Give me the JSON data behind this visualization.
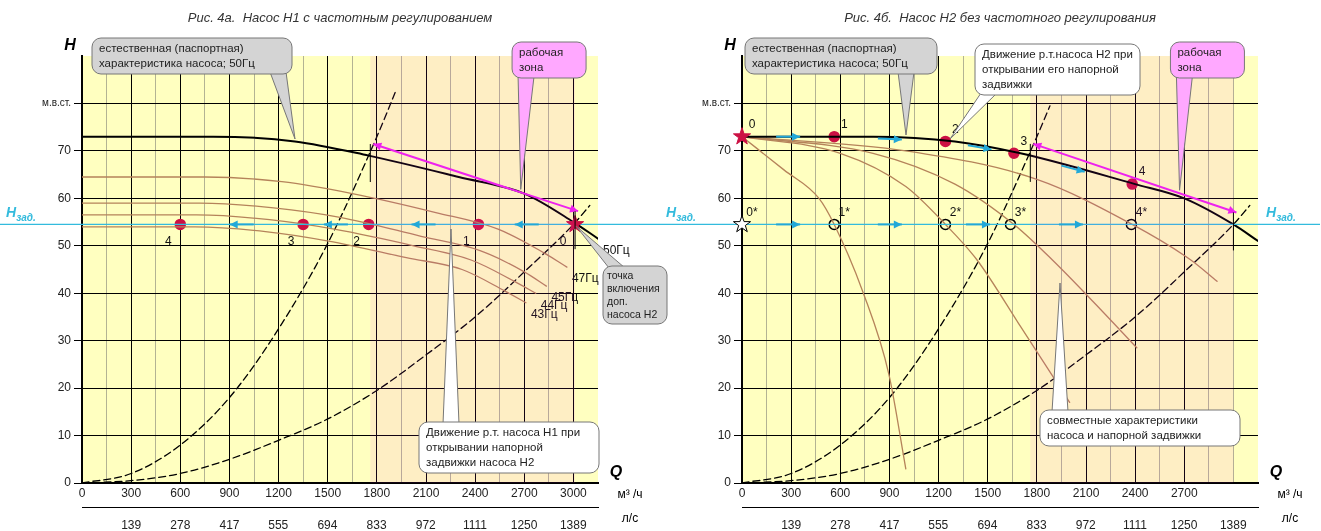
{
  "chart_data": [
    {
      "type": "line",
      "title": "Рис. 4а.  Насос Н1 с частотным регулированием",
      "xlabel": "м³ /ч",
      "x2label": "л/с",
      "ylabel": "H",
      "xlim": [
        0,
        3150
      ],
      "ylim": [
        0,
        90
      ],
      "x2lim": [
        0,
        1459
      ],
      "xticks": [
        0,
        {
          "value": 150,
          "label": null
        },
        300,
        {
          "value": 450,
          "label": null
        },
        600,
        {
          "value": 750,
          "label": null
        },
        900,
        {
          "value": 1050,
          "label": null
        },
        1200,
        {
          "value": 1350,
          "label": null
        },
        1500,
        {
          "value": 1650,
          "label": null
        },
        1800,
        {
          "value": 1950,
          "label": null
        },
        2100,
        {
          "value": 2250,
          "label": null
        },
        2400,
        {
          "value": 2550,
          "label": null
        },
        2700,
        {
          "value": 2850,
          "label": null
        },
        3000
      ],
      "x2ticks": [
        139,
        278,
        417,
        555,
        694,
        833,
        972,
        1111,
        1250,
        1389
      ],
      "yticks": [
        0,
        10,
        20,
        30,
        40,
        50,
        60,
        70,
        {
          "value": 80,
          "label": "м.в.ст."
        }
      ],
      "grid": true,
      "legend": false,
      "series": [
        {
          "name": "50Гц",
          "color": "#000000",
          "x": [
            0,
            800,
            1300,
            1750,
            2300,
            2700,
            3000,
            3150
          ],
          "values": [
            73,
            73,
            72,
            69,
            64.5,
            61,
            55,
            51.5
          ]
        },
        {
          "name": "47Гц",
          "color": "#b5835a",
          "x": [
            0,
            750,
            1220,
            1650,
            2160,
            2540,
            2820,
            2960
          ],
          "values": [
            64.5,
            64.5,
            63.5,
            61,
            57,
            53.5,
            48.5,
            45.5
          ]
        },
        {
          "name": "45Гц",
          "color": "#b5835a",
          "x": [
            0,
            720,
            1170,
            1575,
            2070,
            2430,
            2700,
            2835
          ],
          "values": [
            59,
            59,
            58,
            56,
            52,
            49,
            44.5,
            41.5
          ]
        },
        {
          "name": "44Гц",
          "color": "#b5835a",
          "x": [
            0,
            700,
            1145,
            1540,
            2025,
            2375,
            2640,
            2770
          ],
          "values": [
            56.5,
            56.5,
            55.5,
            53.5,
            50,
            47,
            42.5,
            40
          ]
        },
        {
          "name": "43Гц",
          "color": "#b5835a",
          "x": [
            0,
            690,
            1120,
            1505,
            1980,
            2320,
            2580,
            2710
          ],
          "values": [
            54,
            54,
            53,
            51,
            47.5,
            45,
            40.5,
            38
          ]
        },
        {
          "line_style": "dashed",
          "color": "#000000",
          "x": [
            0,
            300,
            600,
            900,
            1200,
            1500,
            1800,
            1920
          ],
          "values": [
            0,
            2,
            8,
            18,
            32.5,
            50.5,
            73,
            83
          ]
        },
        {
          "line_style": "dashed",
          "color": "#000000",
          "x": [
            0,
            300,
            600,
            900,
            1200,
            1500,
            1800,
            2100,
            2400,
            2700,
            3000,
            3100
          ],
          "values": [
            0,
            0.5,
            2,
            5,
            9,
            13.5,
            19.5,
            27,
            35,
            44.5,
            54.5,
            58.5
          ]
        },
        {
          "type": "scatter",
          "marker": "star",
          "color": "#cc1144",
          "x": [
            3010
          ],
          "values": [
            54.5
          ]
        },
        {
          "type": "scatter",
          "marker": "circle",
          "color": "#cc1144",
          "x": [
            2420,
            1750,
            1350,
            600
          ],
          "values": [
            54.5,
            54.5,
            54.5,
            54.5
          ]
        }
      ],
      "ref_lines": [
        {
          "axis": "y",
          "value": 54.5,
          "label": "H$_{зад.}$",
          "color": "#33bbdd"
        }
      ],
      "bands": [
        {
          "axis": "x",
          "from": 1760,
          "to": 3010,
          "label": "рабочая зона",
          "color": "#ee22ee"
        }
      ],
      "annotations": [
        "Q",
        "естественная (паспортная) характеристика насоса; 50Гц",
        "точка включения доп. насоса Н2",
        "Движение р.т. насоса Н1 при открывании напорной задвижки насоса Н2",
        {
          "text": "0",
          "x": 3010,
          "y": 54.5
        },
        {
          "text": "1",
          "x": 2420,
          "y": 54.5
        },
        {
          "text": "2",
          "x": 1750,
          "y": 54.5
        },
        {
          "text": "3",
          "x": 1350,
          "y": 54.5
        },
        {
          "text": "4",
          "x": 600,
          "y": 54.5
        }
      ]
    },
    {
      "type": "line",
      "title": "Рис. 4б.  Насос Н2 без частотного регулирования",
      "xlabel": "м³ /ч",
      "x2label": "л/с",
      "ylabel": "H",
      "xlim": [
        0,
        3150
      ],
      "ylim": [
        0,
        90
      ],
      "x2lim": [
        0,
        1459
      ],
      "xticks": [
        0,
        {
          "value": 150,
          "label": null
        },
        300,
        {
          "value": 450,
          "label": null
        },
        600,
        {
          "value": 750,
          "label": null
        },
        900,
        {
          "value": 1050,
          "label": null
        },
        1200,
        {
          "value": 1350,
          "label": null
        },
        1500,
        {
          "value": 1650,
          "label": null
        },
        1800,
        {
          "value": 1950,
          "label": null
        },
        2100,
        {
          "value": 2250,
          "label": null
        },
        2400,
        {
          "value": 2550,
          "label": null
        },
        2700,
        {
          "value": 2850,
          "label": null
        },
        {
          "value": 3000,
          "label": null
        }
      ],
      "x2ticks": [
        139,
        278,
        417,
        555,
        694,
        833,
        972,
        1111,
        1250,
        1389
      ],
      "yticks": [
        0,
        10,
        20,
        30,
        40,
        50,
        60,
        70,
        {
          "value": 80,
          "label": "м.в.ст."
        }
      ],
      "grid": true,
      "legend": false,
      "series": [
        {
          "color": "#000000",
          "x": [
            0,
            800,
            1300,
            1700,
            2400,
            2700,
            3000,
            3150
          ],
          "values": [
            73,
            73,
            72,
            69.5,
            63,
            60,
            54.5,
            51
          ]
        },
        {
          "color": "#b5835a",
          "x": [
            0,
            256,
            470,
            563,
            741,
            896,
            1000
          ],
          "values": [
            73,
            66,
            60,
            54.5,
            40,
            23,
            3
          ]
        },
        {
          "color": "#b5835a",
          "x": [
            0,
            600,
            1000,
            1242,
            1435,
            1700,
            2000
          ],
          "values": [
            73,
            69.5,
            62.5,
            54.5,
            47,
            33,
            17
          ]
        },
        {
          "color": "#b5835a",
          "x": [
            0,
            800,
            1300,
            1660,
            1895,
            2150,
            2410
          ],
          "values": [
            73,
            69.5,
            63,
            54.5,
            47,
            38,
            28.5
          ]
        },
        {
          "color": "#b5835a",
          "x": [
            0,
            1000,
            1800,
            2382,
            2740,
            2900
          ],
          "values": [
            73,
            70,
            64,
            54.5,
            47,
            42.5
          ]
        },
        {
          "line_style": "dashed",
          "color": "#000000",
          "x": [
            0,
            300,
            600,
            900,
            1200,
            1500,
            1800,
            1880
          ],
          "values": [
            0,
            2,
            8,
            18,
            32.5,
            50.5,
            73,
            79.5
          ]
        },
        {
          "line_style": "dashed",
          "color": "#000000",
          "x": [
            0,
            300,
            600,
            900,
            1200,
            1500,
            1800,
            2100,
            2400,
            2700,
            3000,
            3100
          ],
          "values": [
            0,
            0.5,
            2,
            5,
            9,
            13.5,
            19.5,
            27,
            35,
            44.5,
            54.5,
            58.5
          ]
        },
        {
          "type": "scatter",
          "marker": "star",
          "color": "#cc1144",
          "x": [
            0
          ],
          "values": [
            73
          ]
        },
        {
          "type": "scatter",
          "marker": "circle",
          "color": "#cc1144",
          "x": [
            563,
            1242,
            1660,
            2382
          ],
          "values": [
            73,
            72,
            69.5,
            63
          ]
        },
        {
          "type": "scatter",
          "marker": "star",
          "color": "#000000",
          "x": [
            0
          ],
          "values": [
            54.5
          ]
        },
        {
          "type": "scatter",
          "marker": "circle",
          "color": "#000000",
          "x": [
            563,
            1242,
            1639,
            2377
          ],
          "values": [
            54.5,
            54.5,
            54.5,
            54.5
          ]
        }
      ],
      "ref_lines": [
        {
          "axis": "y",
          "value": 54.5,
          "label": "H$_{зад.}$",
          "color": "#33bbdd"
        }
      ],
      "bands": [
        {
          "axis": "x",
          "from": 1760,
          "to": 3000,
          "label": "рабочая зона",
          "color": "#ee22ee"
        }
      ],
      "annotations": [
        "Q",
        "естественная (паспортная) характеристика насоса; 50Гц",
        "Движение р.т.насоса Н2 при открывании его напорной задвижки",
        "совместные характеристики насоса и напорной задвижки",
        {
          "text": "0",
          "x": 0,
          "y": 73
        },
        {
          "text": "1",
          "x": 563,
          "y": 73
        },
        {
          "text": "2",
          "x": 1242,
          "y": 72
        },
        {
          "text": "3",
          "x": 1660,
          "y": 69.5
        },
        {
          "text": "4",
          "x": 2382,
          "y": 63
        },
        {
          "text": "0*",
          "x": 0,
          "y": 54.5
        },
        {
          "text": "1*",
          "x": 563,
          "y": 54.5
        },
        {
          "text": "2*",
          "x": 1242,
          "y": 54.5
        },
        {
          "text": "3*",
          "x": 1639,
          "y": 54.5
        },
        {
          "text": "4*",
          "x": 2377,
          "y": 54.5
        }
      ]
    }
  ]
}
